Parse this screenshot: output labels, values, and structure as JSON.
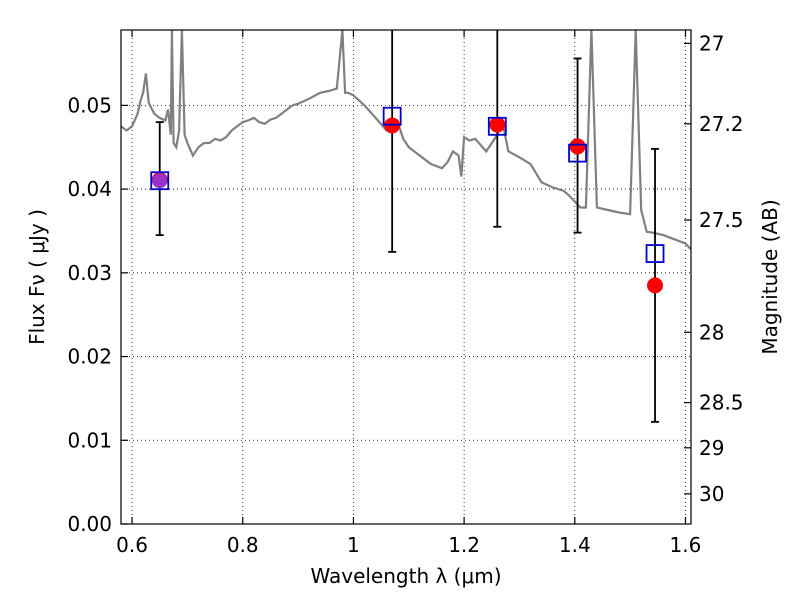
{
  "chart_data": {
    "type": "scatter",
    "xlabel": "Wavelength  λ (μm)",
    "ylabel": "Flux  Fν  ( μJy )",
    "y2label": "Magnitude (AB)",
    "xlim": [
      0.58,
      1.61
    ],
    "ylim": [
      0.0,
      0.059
    ],
    "grid": true,
    "x_ticks": [
      {
        "value": 0.6,
        "label": "0.6"
      },
      {
        "value": 0.8,
        "label": "0.8"
      },
      {
        "value": 1.0,
        "label": "1"
      },
      {
        "value": 1.2,
        "label": "1.2"
      },
      {
        "value": 1.4,
        "label": "1.4"
      },
      {
        "value": 1.6,
        "label": "1.6"
      }
    ],
    "y_ticks": [
      {
        "value": 0.0,
        "label": "0.00"
      },
      {
        "value": 0.01,
        "label": "0.01"
      },
      {
        "value": 0.02,
        "label": "0.02"
      },
      {
        "value": 0.03,
        "label": "0.03"
      },
      {
        "value": 0.04,
        "label": "0.04"
      },
      {
        "value": 0.05,
        "label": "0.05"
      }
    ],
    "y2_ticks": [
      {
        "flux": 0.0574,
        "label": "27"
      },
      {
        "flux": 0.0478,
        "label": "27.2"
      },
      {
        "flux": 0.0363,
        "label": "27.5"
      },
      {
        "flux": 0.0229,
        "label": "28"
      },
      {
        "flux": 0.0145,
        "label": "28.5"
      },
      {
        "flux": 0.0091,
        "label": "29"
      },
      {
        "flux": 0.0036,
        "label": "30"
      }
    ],
    "colors": {
      "model_line": "#808080",
      "observed": "#ff0000",
      "model_flux": "#0000cc",
      "error_bar": "#000000",
      "overlap": "#9933cc"
    },
    "series": [
      {
        "kind": "line",
        "x": [
          0.58,
          0.59,
          0.6,
          0.61,
          0.615,
          0.62,
          0.625,
          0.63,
          0.64,
          0.65,
          0.66,
          0.665,
          0.67,
          0.672,
          0.675,
          0.68,
          0.685,
          0.69,
          0.695,
          0.7,
          0.71,
          0.72,
          0.73,
          0.74,
          0.75,
          0.76,
          0.77,
          0.78,
          0.79,
          0.8,
          0.81,
          0.82,
          0.83,
          0.84,
          0.85,
          0.86,
          0.87,
          0.88,
          0.89,
          0.9,
          0.92,
          0.94,
          0.96,
          0.97,
          0.98,
          0.985,
          0.99,
          1.0,
          1.02,
          1.04,
          1.06,
          1.07,
          1.08,
          1.09,
          1.1,
          1.12,
          1.14,
          1.16,
          1.17,
          1.18,
          1.19,
          1.195,
          1.2,
          1.21,
          1.22,
          1.24,
          1.25,
          1.26,
          1.27,
          1.28,
          1.3,
          1.32,
          1.34,
          1.36,
          1.38,
          1.39,
          1.4,
          1.41,
          1.42,
          1.43,
          1.44,
          1.46,
          1.48,
          1.5,
          1.51,
          1.52,
          1.53,
          1.54,
          1.56,
          1.58,
          1.6,
          1.61
        ],
        "y": [
          0.0475,
          0.047,
          0.0475,
          0.049,
          0.0505,
          0.0515,
          0.0538,
          0.0503,
          0.049,
          0.0485,
          0.0482,
          0.0495,
          0.0465,
          0.059,
          0.0455,
          0.045,
          0.047,
          0.059,
          0.0465,
          0.0455,
          0.044,
          0.045,
          0.0455,
          0.0455,
          0.046,
          0.0458,
          0.0462,
          0.047,
          0.0475,
          0.048,
          0.0482,
          0.0485,
          0.048,
          0.0478,
          0.0483,
          0.0485,
          0.049,
          0.0495,
          0.05,
          0.0502,
          0.0508,
          0.0515,
          0.0518,
          0.052,
          0.059,
          0.0515,
          0.0515,
          0.0512,
          0.05,
          0.0485,
          0.047,
          0.0475,
          0.048,
          0.046,
          0.045,
          0.044,
          0.043,
          0.0425,
          0.0432,
          0.0445,
          0.044,
          0.0415,
          0.0462,
          0.0458,
          0.046,
          0.0445,
          0.0455,
          0.0465,
          0.0478,
          0.0445,
          0.0438,
          0.043,
          0.0408,
          0.0402,
          0.0398,
          0.0392,
          0.0385,
          0.0378,
          0.0378,
          0.059,
          0.0378,
          0.0375,
          0.0372,
          0.037,
          0.059,
          0.0375,
          0.0349,
          0.0348,
          0.0345,
          0.034,
          0.0335,
          0.0328
        ]
      },
      {
        "kind": "observed",
        "points": [
          {
            "x": 0.65,
            "y": 0.0411,
            "yerr_low": 0.0345,
            "yerr_high": 0.048
          },
          {
            "x": 1.07,
            "y": 0.0476,
            "yerr_low": 0.0325,
            "yerr_high": 0.059
          },
          {
            "x": 1.26,
            "y": 0.0477,
            "yerr_low": 0.0355,
            "yerr_high": 0.059
          },
          {
            "x": 1.405,
            "y": 0.0451,
            "yerr_low": 0.0348,
            "yerr_high": 0.0556
          },
          {
            "x": 1.545,
            "y": 0.0285,
            "yerr_low": 0.0122,
            "yerr_high": 0.0448
          }
        ]
      },
      {
        "kind": "model_flux",
        "points": [
          {
            "x": 0.65,
            "y": 0.041
          },
          {
            "x": 1.07,
            "y": 0.0487
          },
          {
            "x": 1.26,
            "y": 0.0475
          },
          {
            "x": 1.405,
            "y": 0.0443
          },
          {
            "x": 1.545,
            "y": 0.0323
          }
        ]
      }
    ]
  }
}
